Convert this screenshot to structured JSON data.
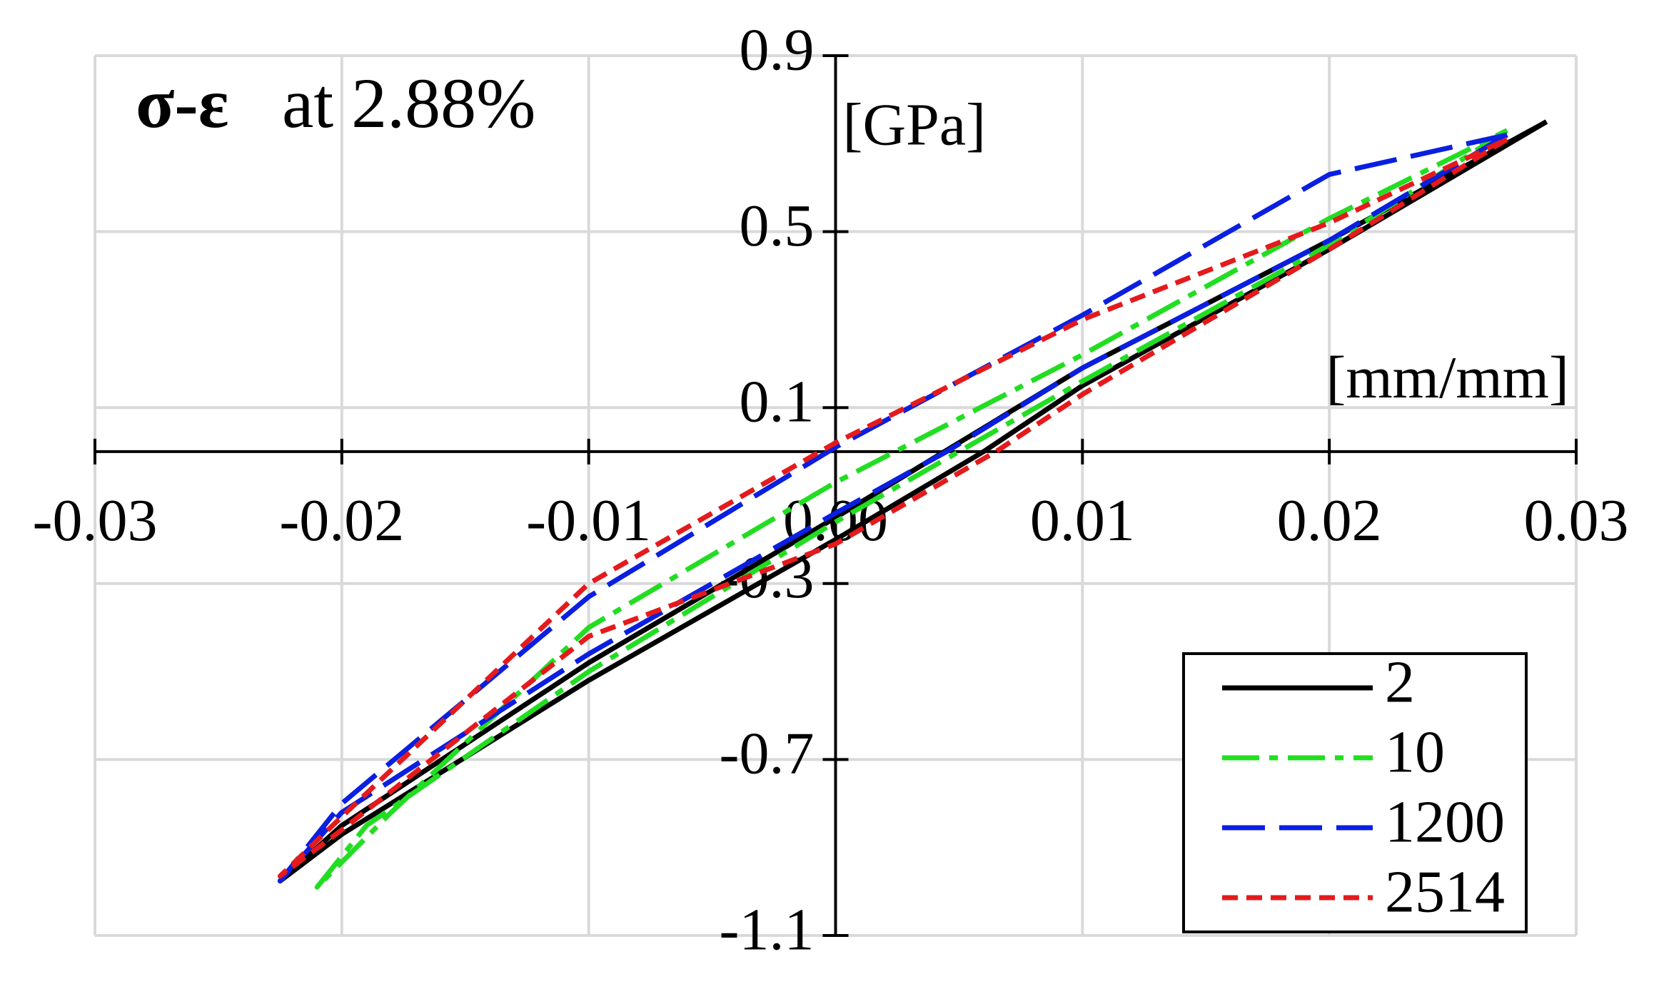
{
  "chart_data": {
    "type": "line",
    "title_symbol": "σ-ε",
    "title": "at 2.88%",
    "x_label": "[mm/mm]",
    "y_label": "[GPa]",
    "xlim": [
      -0.03,
      0.03
    ],
    "ylim": [
      -1.1,
      0.9
    ],
    "xticks": [
      -0.03,
      -0.02,
      -0.01,
      {
        "value": 0,
        "label": "0.00"
      },
      0.01,
      0.02,
      0.03
    ],
    "yticks": [
      0.9,
      0.5,
      0.1,
      -0.3,
      -0.7,
      -1.1
    ],
    "grid": true,
    "legend": "lower right",
    "series": [
      {
        "name": "2",
        "color": "#000000",
        "dash": "solid",
        "x": [
          0.0288,
          0.02,
          0.01,
          0.006,
          0,
          -0.01,
          -0.02,
          -0.0225,
          -0.02,
          -0.01,
          0,
          0.01,
          0.02,
          0.0288
        ],
        "values": [
          0.75,
          0.46,
          0.15,
          0,
          -0.2,
          -0.52,
          -0.87,
          -0.976,
          -0.85,
          -0.48,
          -0.15,
          0.19,
          0.48,
          0.75
        ]
      },
      {
        "name": "10",
        "color": "#22dd22",
        "dash": "dashdot",
        "x": [
          0.0272,
          0.02,
          0.01,
          0.005,
          0,
          -0.01,
          -0.019,
          -0.021,
          -0.018,
          -0.01,
          0,
          0.01,
          0.02,
          0.0272
        ],
        "values": [
          0.73,
          0.47,
          0.16,
          0,
          -0.16,
          -0.5,
          -0.85,
          -0.99,
          -0.82,
          -0.4,
          -0.07,
          0.22,
          0.53,
          0.73
        ]
      },
      {
        "name": "1200",
        "color": "#0a1fe0",
        "dash": "dash",
        "x": [
          0.0272,
          0.02,
          0.01,
          0.0045,
          0,
          -0.01,
          -0.02,
          -0.0225,
          -0.02,
          -0.01,
          0,
          0.01,
          0.02,
          0.0272
        ],
        "values": [
          0.72,
          0.48,
          0.19,
          0,
          -0.14,
          -0.46,
          -0.82,
          -0.976,
          -0.8,
          -0.33,
          0.01,
          0.31,
          0.63,
          0.72
        ]
      },
      {
        "name": "2514",
        "color": "#e41a1c",
        "dash": "dot",
        "x": [
          0.0272,
          0.02,
          0.01,
          0.0065,
          0,
          -0.01,
          -0.02,
          -0.0225,
          -0.02,
          -0.01,
          0,
          0.01,
          0.02,
          0.0272
        ],
        "values": [
          0.71,
          0.46,
          0.13,
          0,
          -0.21,
          -0.42,
          -0.86,
          -0.965,
          -0.83,
          -0.3,
          0.02,
          0.3,
          0.52,
          0.71
        ]
      }
    ]
  }
}
